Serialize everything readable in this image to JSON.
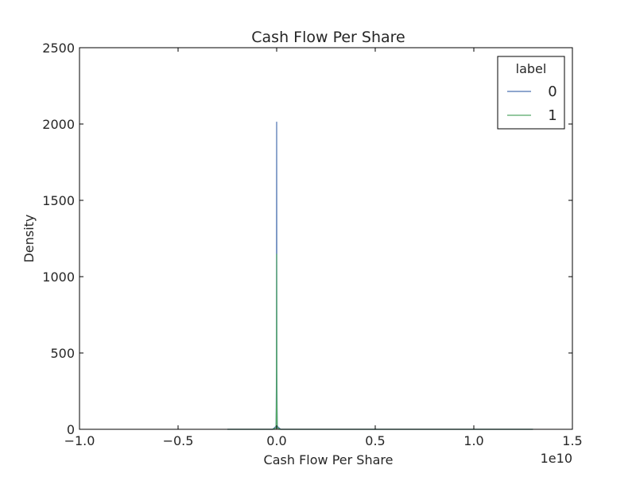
{
  "chart_data": {
    "type": "line",
    "title": "Cash Flow Per Share",
    "xlabel": "Cash Flow Per Share",
    "ylabel": "Density",
    "x_offset_label": "1e10",
    "xlim": [
      -1.0,
      1.5
    ],
    "ylim": [
      0,
      2500
    ],
    "xticks": [
      -1.0,
      -0.5,
      0.0,
      0.5,
      1.0,
      1.5
    ],
    "xtick_labels": [
      "−1.0",
      "−0.5",
      "0.0",
      "0.5",
      "1.0",
      "1.5"
    ],
    "yticks": [
      0,
      500,
      1000,
      1500,
      2000,
      2500
    ],
    "ytick_labels": [
      "0",
      "500",
      "1000",
      "1500",
      "2000",
      "2500"
    ],
    "grid": false,
    "legend": {
      "title": "label",
      "placement": "top-right"
    },
    "series": [
      {
        "name": "0",
        "color": "#4c72b0",
        "x": [
          -0.25,
          -0.02,
          -0.003,
          -0.001,
          0.0,
          0.001,
          0.003,
          0.02,
          0.5,
          1.0,
          1.3
        ],
        "y": [
          0,
          0,
          20,
          400,
          2015,
          400,
          20,
          0,
          0,
          0,
          0
        ]
      },
      {
        "name": "1",
        "color": "#55a868",
        "x": [
          -0.25,
          -0.02,
          -0.003,
          -0.001,
          0.0,
          0.001,
          0.003,
          0.02,
          0.5,
          1.0,
          1.3
        ],
        "y": [
          0,
          0,
          10,
          200,
          1150,
          200,
          10,
          0,
          0,
          0,
          0
        ]
      }
    ]
  }
}
